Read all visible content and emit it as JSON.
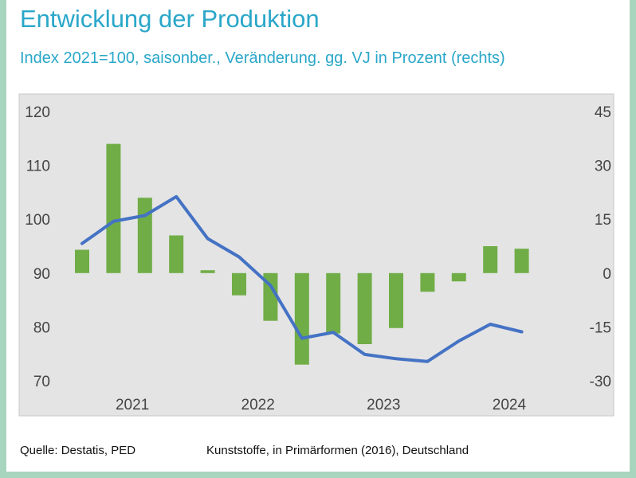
{
  "header": {
    "title": "Entwicklung der Produktion",
    "subtitle": "Index 2021=100, saisonber., Veränderung. gg. VJ in Prozent (rechts)"
  },
  "footer": {
    "source": "Quelle: Destatis, PED",
    "note": "Kunststoffe, in Primärformen (2016), Deutschland"
  },
  "colors": {
    "bars": "#70ad47",
    "line": "#4472c4",
    "plot_bg": "#e4e4e4",
    "title": "#2aa7c9"
  },
  "chart_data": {
    "type": "bar+line",
    "title": "Entwicklung der Produktion",
    "subtitle": "Index 2021=100, saisonber., Veränderung. gg. VJ in Prozent (rechts)",
    "x": [
      "2021-Q1",
      "2021-Q2",
      "2021-Q3",
      "2021-Q4",
      "2022-Q1",
      "2022-Q2",
      "2022-Q3",
      "2022-Q4",
      "2023-Q1",
      "2023-Q2",
      "2023-Q3",
      "2023-Q4",
      "2024-Q1",
      "2024-Q2",
      "2024-Q3",
      "2024-Q4"
    ],
    "x_tick_labels": [
      "2021",
      "2022",
      "2023",
      "2024"
    ],
    "yleft_ticks": [
      "70",
      "80",
      "90",
      "100",
      "110",
      "120"
    ],
    "yright_ticks": [
      "-30",
      "-15",
      "0",
      "15",
      "30",
      "45"
    ],
    "yleft_lim": [
      70,
      120
    ],
    "yright_lim": [
      -30,
      45
    ],
    "grid": false,
    "legend": "none",
    "series": [
      {
        "type": "bar",
        "axis": "right",
        "values": [
          6.5,
          36,
          21,
          10.5,
          0.8,
          -6.2,
          -13.3,
          -25.5,
          -16.8,
          -19.8,
          -15.3,
          -5.2,
          -2.3,
          7.5,
          6.8,
          null
        ]
      },
      {
        "type": "line",
        "axis": "left",
        "values": [
          95.5,
          99.6,
          100.7,
          104.2,
          96.4,
          93,
          87.7,
          77.9,
          79,
          74.9,
          74.1,
          73.6,
          77.4,
          80.5,
          79.1,
          null
        ]
      }
    ]
  }
}
